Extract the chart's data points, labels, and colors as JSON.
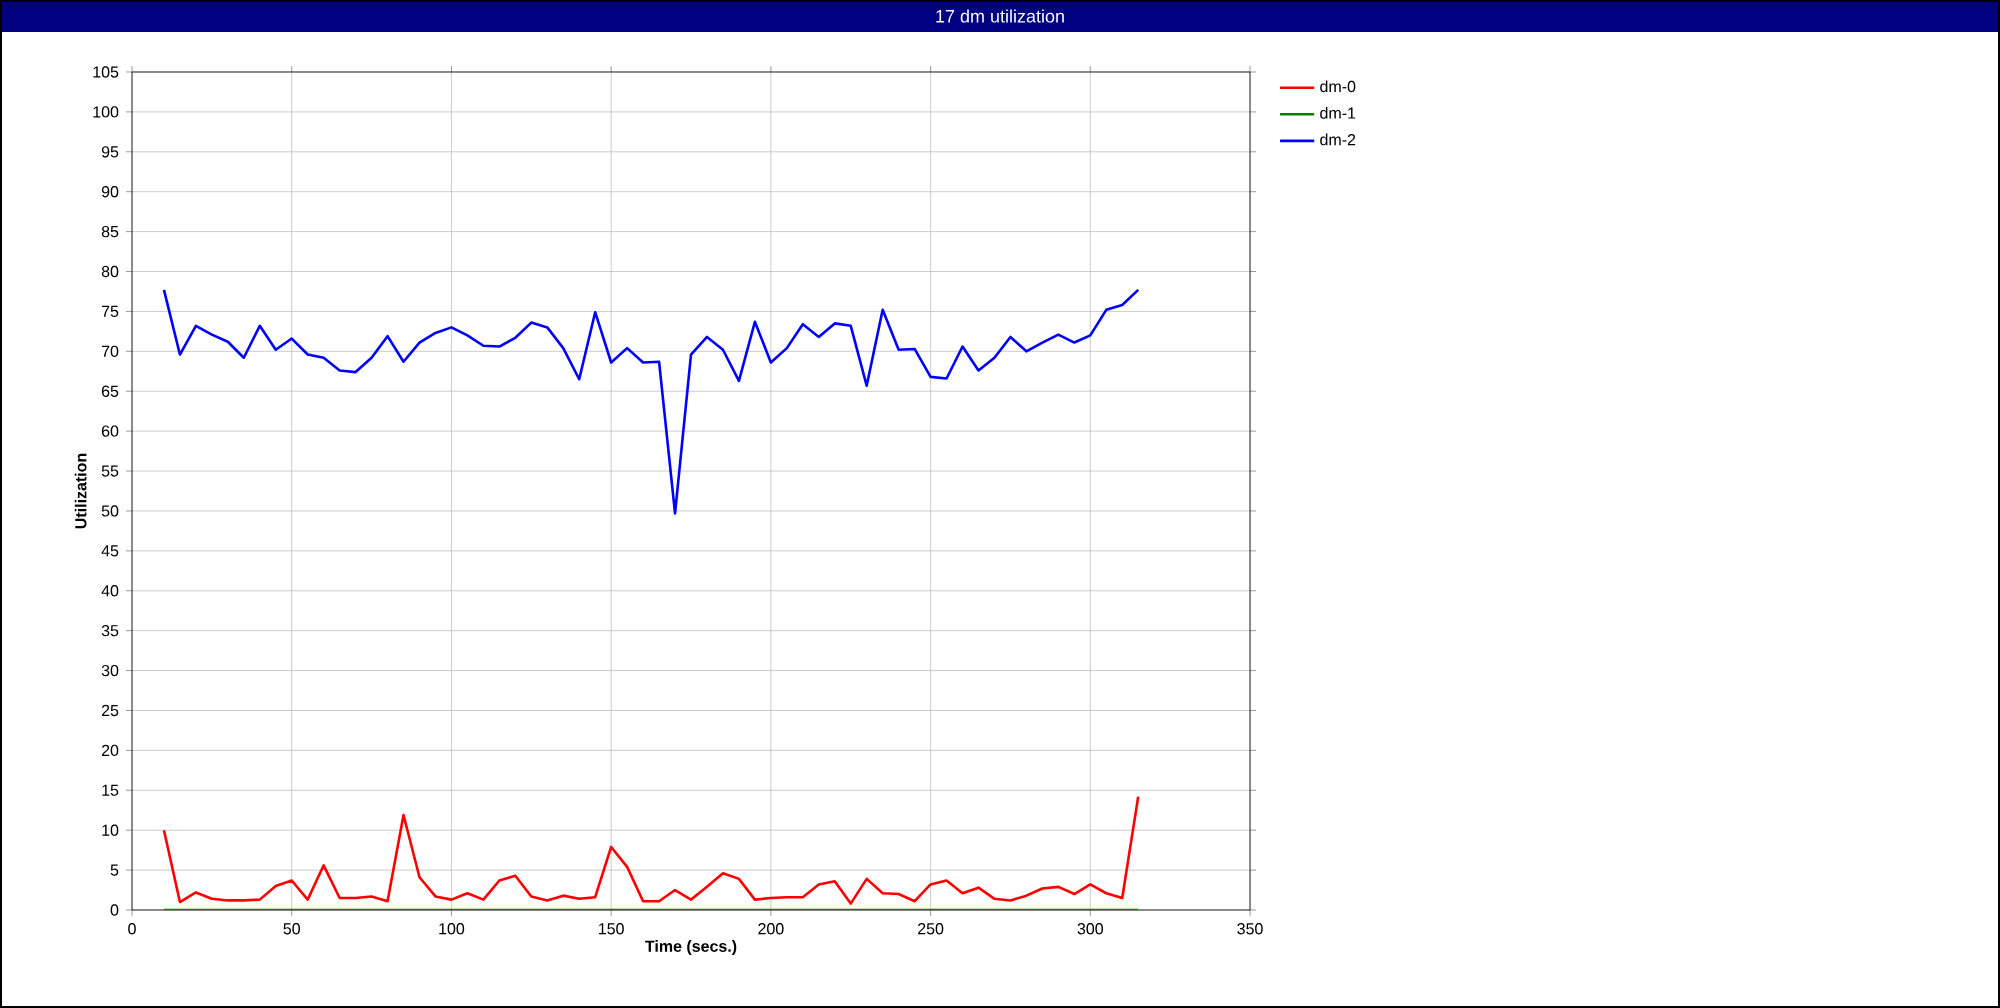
{
  "chart_data": {
    "type": "line",
    "title": "17 dm utilization",
    "xlabel": "Time (secs.)",
    "ylabel": "Utilization",
    "x": [
      10,
      15,
      20,
      25,
      30,
      35,
      40,
      45,
      50,
      55,
      60,
      65,
      70,
      75,
      80,
      85,
      90,
      95,
      100,
      105,
      110,
      115,
      120,
      125,
      130,
      135,
      140,
      145,
      150,
      155,
      160,
      165,
      170,
      175,
      180,
      185,
      190,
      195,
      200,
      205,
      210,
      215,
      220,
      225,
      230,
      235,
      240,
      245,
      250,
      255,
      260,
      265,
      270,
      275,
      280,
      285,
      290,
      295,
      300,
      305,
      310,
      315
    ],
    "series": [
      {
        "name": "dm-0",
        "color": "#ff0000",
        "values": [
          10,
          1,
          2.2,
          1.4,
          1.2,
          1.2,
          1.3,
          3,
          3.7,
          1.3,
          5.6,
          1.5,
          1.5,
          1.7,
          1.1,
          11.9,
          4.1,
          1.7,
          1.3,
          2.1,
          1.3,
          3.7,
          4.3,
          1.7,
          1.2,
          1.8,
          1.4,
          1.6,
          7.9,
          5.4,
          1.1,
          1.1,
          2.5,
          1.3,
          2.9,
          4.6,
          3.9,
          1.3,
          1.5,
          1.6,
          1.6,
          3.2,
          3.6,
          0.8,
          3.9,
          2.1,
          2,
          1.1,
          3.2,
          3.7,
          2.1,
          2.8,
          1.4,
          1.2,
          1.8,
          2.7,
          2.9,
          2,
          3.2,
          2.1,
          1.5,
          14.2
        ]
      },
      {
        "name": "dm-1",
        "color": "#008000",
        "values": [
          0,
          0,
          0,
          0,
          0,
          0,
          0,
          0,
          0,
          0,
          0,
          0,
          0,
          0,
          0,
          0,
          0,
          0,
          0,
          0,
          0,
          0,
          0,
          0,
          0,
          0,
          0,
          0,
          0,
          0,
          0,
          0,
          0,
          0,
          0,
          0,
          0,
          0,
          0,
          0,
          0,
          0,
          0,
          0,
          0,
          0,
          0,
          0,
          0,
          0,
          0,
          0,
          0,
          0,
          0,
          0,
          0,
          0,
          0,
          0,
          0,
          0
        ]
      },
      {
        "name": "dm-2",
        "color": "#0000ff",
        "values": [
          77.7,
          69.6,
          73.2,
          72.1,
          71.2,
          69.2,
          73.2,
          70.2,
          71.6,
          69.6,
          69.2,
          67.6,
          67.4,
          69.2,
          71.9,
          68.7,
          71.1,
          72.3,
          73,
          72,
          70.7,
          70.6,
          71.7,
          73.6,
          73,
          70.4,
          66.5,
          74.9,
          68.6,
          70.4,
          68.6,
          68.7,
          49.7,
          69.6,
          71.8,
          70.2,
          66.3,
          73.7,
          68.6,
          70.4,
          73.4,
          71.8,
          73.5,
          73.2,
          65.7,
          75.2,
          70.2,
          70.3,
          66.8,
          66.6,
          70.6,
          67.6,
          69.2,
          71.8,
          70,
          71.1,
          72.1,
          71.1,
          72,
          75.2,
          75.8,
          77.7
        ]
      }
    ],
    "xlim": [
      0,
      350
    ],
    "ylim": [
      0,
      105
    ],
    "xticks": [
      0,
      50,
      100,
      150,
      200,
      250,
      300,
      350
    ],
    "yticks": [
      0,
      5,
      10,
      15,
      20,
      25,
      30,
      35,
      40,
      45,
      50,
      55,
      60,
      65,
      70,
      75,
      80,
      85,
      90,
      95,
      100,
      105
    ],
    "grid": true,
    "legend": "top right",
    "marker": "none",
    "line_style": "solid"
  }
}
